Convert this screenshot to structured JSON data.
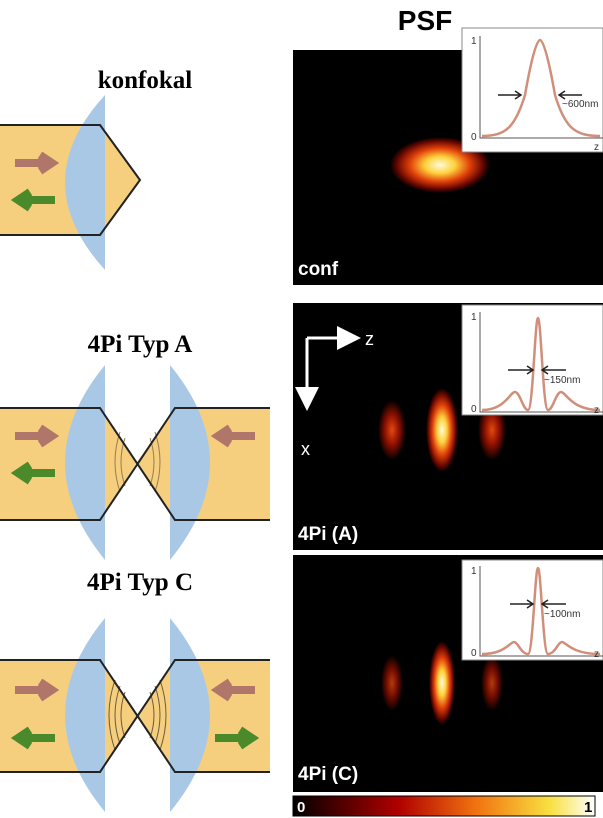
{
  "title": "PSF",
  "rows": [
    {
      "label": "konfokal",
      "panel": "conf",
      "inset": {
        "top": "1",
        "bottom": "0",
        "axis": "z",
        "width": "~600nm"
      }
    },
    {
      "label": "4Pi Typ A",
      "panel": "4Pi (A)",
      "inset": {
        "top": "1",
        "bottom": "0",
        "axis": "z",
        "width": "~150nm"
      }
    },
    {
      "label": "4Pi Typ C",
      "panel": "4Pi (C)",
      "inset": {
        "top": "1",
        "bottom": "0",
        "axis": "z",
        "width": "~100nm"
      }
    }
  ],
  "axes": {
    "z": "z",
    "x": "x"
  },
  "colorbar": {
    "min": "0",
    "max": "1"
  }
}
